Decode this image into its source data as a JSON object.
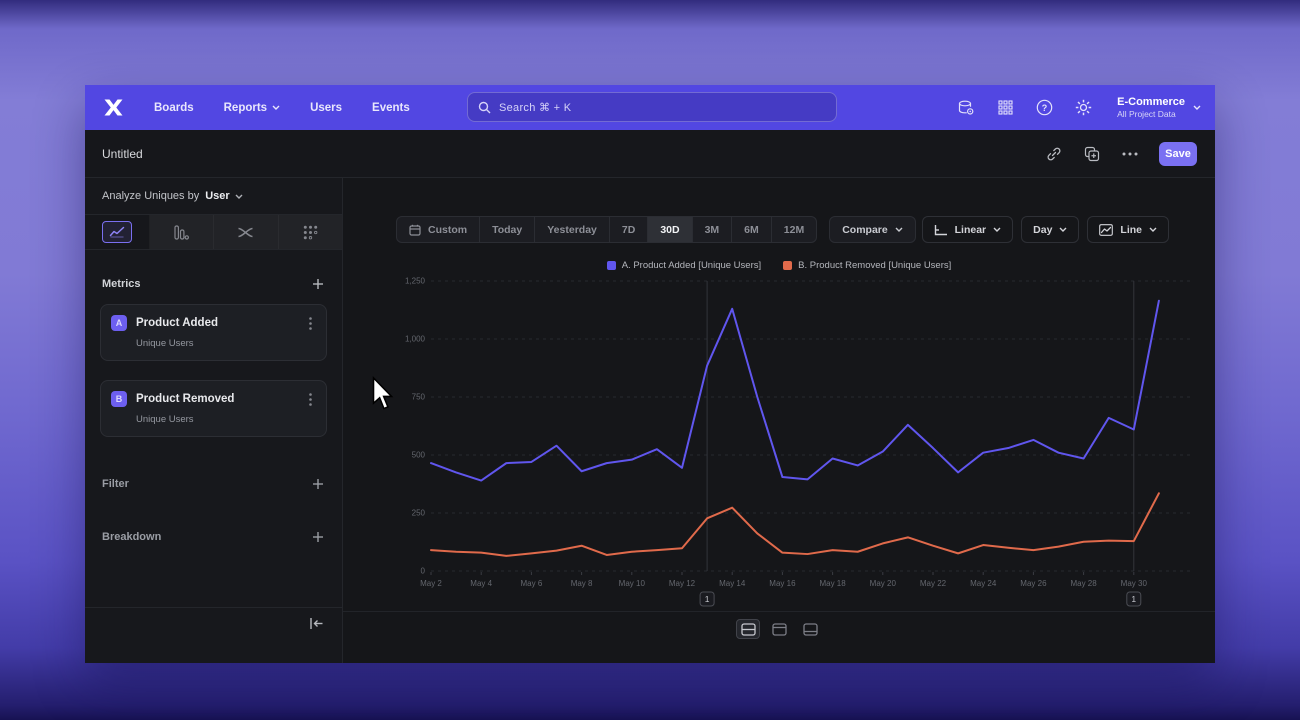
{
  "nav": {
    "items": [
      {
        "label": "Boards"
      },
      {
        "label": "Reports"
      },
      {
        "label": "Users"
      },
      {
        "label": "Events"
      }
    ],
    "search": {
      "placeholder": "Search  ⌘ + K"
    },
    "project": {
      "name": "E-Commerce",
      "subtitle": "All Project Data"
    }
  },
  "toolbar": {
    "title": "Untitled",
    "save_label": "Save"
  },
  "sidebar": {
    "analyze_label": "Analyze Uniques by",
    "analyze_value": "User",
    "sections": {
      "metrics": "Metrics",
      "filter": "Filter",
      "breakdown": "Breakdown"
    },
    "metrics": [
      {
        "badge": "A",
        "name": "Product Added",
        "subtitle": "Unique Users"
      },
      {
        "badge": "B",
        "name": "Product Removed",
        "subtitle": "Unique Users"
      }
    ]
  },
  "chart_controls": {
    "ranges": [
      "Custom",
      "Today",
      "Yesterday",
      "7D",
      "30D",
      "3M",
      "6M",
      "12M"
    ],
    "selected_range": "30D",
    "compare_label": "Compare",
    "scale_label": "Linear",
    "interval_label": "Day",
    "type_label": "Line"
  },
  "chart_data": {
    "type": "line",
    "categories": [
      "May 2",
      "May 3",
      "May 4",
      "May 5",
      "May 6",
      "May 7",
      "May 8",
      "May 9",
      "May 10",
      "May 11",
      "May 12",
      "May 13",
      "May 14",
      "May 15",
      "May 16",
      "May 17",
      "May 18",
      "May 19",
      "May 20",
      "May 21",
      "May 22",
      "May 23",
      "May 24",
      "May 25",
      "May 26",
      "May 27",
      "May 28",
      "May 29",
      "May 30",
      "May 31"
    ],
    "x_tick_every": 2,
    "series": [
      {
        "name": "A. Product Added [Unique Users]",
        "color": "#6056ee",
        "values": [
          465,
          425,
          390,
          465,
          470,
          540,
          430,
          465,
          480,
          525,
          445,
          885,
          1130,
          750,
          405,
          395,
          485,
          455,
          515,
          630,
          530,
          425,
          510,
          530,
          565,
          510,
          485,
          660,
          610,
          1165
        ]
      },
      {
        "name": "B. Product Removed [Unique Users]",
        "color": "#e06a4b",
        "values": [
          90,
          83,
          79,
          65,
          76,
          88,
          109,
          69,
          83,
          90,
          98,
          227,
          273,
          162,
          79,
          73,
          90,
          83,
          119,
          145,
          109,
          76,
          112,
          100,
          90,
          105,
          126,
          131,
          129,
          335
        ]
      }
    ],
    "ylim": [
      0,
      1250
    ],
    "yticks": [
      0,
      250,
      500,
      750,
      1000,
      1250
    ],
    "ytick_labels": [
      "0",
      "250",
      "500",
      "750",
      "1,000",
      "1,250"
    ],
    "annotations": [
      {
        "category": "May 13",
        "label": "1"
      },
      {
        "category": "May 30",
        "label": "1"
      }
    ],
    "grid": true,
    "legend_position": "top-center"
  }
}
